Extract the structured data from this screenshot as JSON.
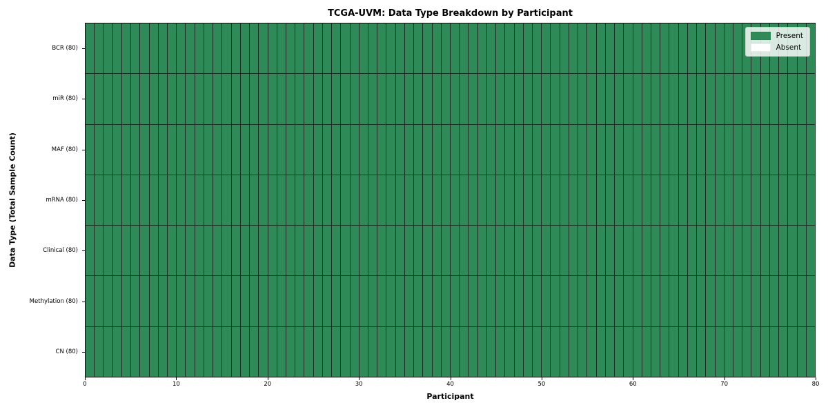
{
  "chart_data": {
    "type": "heatmap",
    "title": "TCGA-UVM: Data Type Breakdown by Participant",
    "xlabel": "Participant",
    "ylabel": "Data Type (Total Sample Count)",
    "xlim": [
      0,
      80
    ],
    "x_ticks": [
      0,
      10,
      20,
      30,
      40,
      50,
      60,
      70,
      80
    ],
    "n_cols": 80,
    "n_rows": 7,
    "grid": true,
    "legend_position": "upper right",
    "value_meaning": {
      "1": "Present",
      "0": "Absent"
    },
    "colors": {
      "present": "#2e8b57",
      "absent": "#ffffff",
      "grid_line": "#1f2a22",
      "spine": "#000000"
    },
    "legend": [
      {
        "label": "Present",
        "color": "#2e8b57"
      },
      {
        "label": "Absent",
        "color": "#ffffff"
      }
    ],
    "rows": [
      {
        "label": "BCR (80)",
        "total": 80,
        "values": [
          1,
          1,
          1,
          1,
          1,
          1,
          1,
          1,
          1,
          1,
          1,
          1,
          1,
          1,
          1,
          1,
          1,
          1,
          1,
          1,
          1,
          1,
          1,
          1,
          1,
          1,
          1,
          1,
          1,
          1,
          1,
          1,
          1,
          1,
          1,
          1,
          1,
          1,
          1,
          1,
          1,
          1,
          1,
          1,
          1,
          1,
          1,
          1,
          1,
          1,
          1,
          1,
          1,
          1,
          1,
          1,
          1,
          1,
          1,
          1,
          1,
          1,
          1,
          1,
          1,
          1,
          1,
          1,
          1,
          1,
          1,
          1,
          1,
          1,
          1,
          1,
          1,
          1,
          1,
          1
        ]
      },
      {
        "label": "miR (80)",
        "total": 80,
        "values": [
          1,
          1,
          1,
          1,
          1,
          1,
          1,
          1,
          1,
          1,
          1,
          1,
          1,
          1,
          1,
          1,
          1,
          1,
          1,
          1,
          1,
          1,
          1,
          1,
          1,
          1,
          1,
          1,
          1,
          1,
          1,
          1,
          1,
          1,
          1,
          1,
          1,
          1,
          1,
          1,
          1,
          1,
          1,
          1,
          1,
          1,
          1,
          1,
          1,
          1,
          1,
          1,
          1,
          1,
          1,
          1,
          1,
          1,
          1,
          1,
          1,
          1,
          1,
          1,
          1,
          1,
          1,
          1,
          1,
          1,
          1,
          1,
          1,
          1,
          1,
          1,
          1,
          1,
          1,
          1
        ]
      },
      {
        "label": "MAF (80)",
        "total": 80,
        "values": [
          1,
          1,
          1,
          1,
          1,
          1,
          1,
          1,
          1,
          1,
          1,
          1,
          1,
          1,
          1,
          1,
          1,
          1,
          1,
          1,
          1,
          1,
          1,
          1,
          1,
          1,
          1,
          1,
          1,
          1,
          1,
          1,
          1,
          1,
          1,
          1,
          1,
          1,
          1,
          1,
          1,
          1,
          1,
          1,
          1,
          1,
          1,
          1,
          1,
          1,
          1,
          1,
          1,
          1,
          1,
          1,
          1,
          1,
          1,
          1,
          1,
          1,
          1,
          1,
          1,
          1,
          1,
          1,
          1,
          1,
          1,
          1,
          1,
          1,
          1,
          1,
          1,
          1,
          1,
          1
        ]
      },
      {
        "label": "mRNA (80)",
        "total": 80,
        "values": [
          1,
          1,
          1,
          1,
          1,
          1,
          1,
          1,
          1,
          1,
          1,
          1,
          1,
          1,
          1,
          1,
          1,
          1,
          1,
          1,
          1,
          1,
          1,
          1,
          1,
          1,
          1,
          1,
          1,
          1,
          1,
          1,
          1,
          1,
          1,
          1,
          1,
          1,
          1,
          1,
          1,
          1,
          1,
          1,
          1,
          1,
          1,
          1,
          1,
          1,
          1,
          1,
          1,
          1,
          1,
          1,
          1,
          1,
          1,
          1,
          1,
          1,
          1,
          1,
          1,
          1,
          1,
          1,
          1,
          1,
          1,
          1,
          1,
          1,
          1,
          1,
          1,
          1,
          1,
          1
        ]
      },
      {
        "label": "Clinical (80)",
        "total": 80,
        "values": [
          1,
          1,
          1,
          1,
          1,
          1,
          1,
          1,
          1,
          1,
          1,
          1,
          1,
          1,
          1,
          1,
          1,
          1,
          1,
          1,
          1,
          1,
          1,
          1,
          1,
          1,
          1,
          1,
          1,
          1,
          1,
          1,
          1,
          1,
          1,
          1,
          1,
          1,
          1,
          1,
          1,
          1,
          1,
          1,
          1,
          1,
          1,
          1,
          1,
          1,
          1,
          1,
          1,
          1,
          1,
          1,
          1,
          1,
          1,
          1,
          1,
          1,
          1,
          1,
          1,
          1,
          1,
          1,
          1,
          1,
          1,
          1,
          1,
          1,
          1,
          1,
          1,
          1,
          1,
          1
        ]
      },
      {
        "label": "Methylation (80)",
        "total": 80,
        "values": [
          1,
          1,
          1,
          1,
          1,
          1,
          1,
          1,
          1,
          1,
          1,
          1,
          1,
          1,
          1,
          1,
          1,
          1,
          1,
          1,
          1,
          1,
          1,
          1,
          1,
          1,
          1,
          1,
          1,
          1,
          1,
          1,
          1,
          1,
          1,
          1,
          1,
          1,
          1,
          1,
          1,
          1,
          1,
          1,
          1,
          1,
          1,
          1,
          1,
          1,
          1,
          1,
          1,
          1,
          1,
          1,
          1,
          1,
          1,
          1,
          1,
          1,
          1,
          1,
          1,
          1,
          1,
          1,
          1,
          1,
          1,
          1,
          1,
          1,
          1,
          1,
          1,
          1,
          1,
          1
        ]
      },
      {
        "label": "CN (80)",
        "total": 80,
        "values": [
          1,
          1,
          1,
          1,
          1,
          1,
          1,
          1,
          1,
          1,
          1,
          1,
          1,
          1,
          1,
          1,
          1,
          1,
          1,
          1,
          1,
          1,
          1,
          1,
          1,
          1,
          1,
          1,
          1,
          1,
          1,
          1,
          1,
          1,
          1,
          1,
          1,
          1,
          1,
          1,
          1,
          1,
          1,
          1,
          1,
          1,
          1,
          1,
          1,
          1,
          1,
          1,
          1,
          1,
          1,
          1,
          1,
          1,
          1,
          1,
          1,
          1,
          1,
          1,
          1,
          1,
          1,
          1,
          1,
          1,
          1,
          1,
          1,
          1,
          1,
          1,
          1,
          1,
          1,
          1
        ]
      }
    ]
  }
}
